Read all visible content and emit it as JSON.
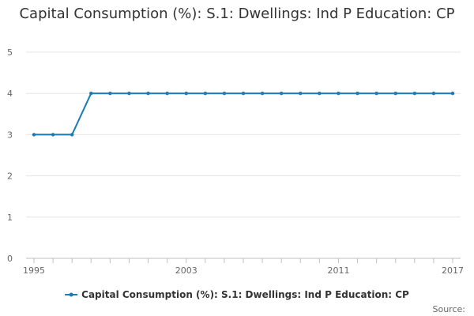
{
  "chart_data": {
    "type": "line",
    "title": "Capital Consumption (%): S.1: Dwellings: Ind P Education: CP",
    "xlabel": "",
    "ylabel": "",
    "x": [
      1995,
      1996,
      1997,
      1998,
      1999,
      2000,
      2001,
      2002,
      2003,
      2004,
      2005,
      2006,
      2007,
      2008,
      2009,
      2010,
      2011,
      2012,
      2013,
      2014,
      2015,
      2016,
      2017
    ],
    "series": [
      {
        "name": "Capital Consumption (%): S.1: Dwellings: Ind P Education: CP",
        "values": [
          3,
          3,
          3,
          4,
          4,
          4,
          4,
          4,
          4,
          4,
          4,
          4,
          4,
          4,
          4,
          4,
          4,
          4,
          4,
          4,
          4,
          4,
          4
        ],
        "color": "#1a7ab5"
      }
    ],
    "xlim": [
      1995,
      2017
    ],
    "ylim": [
      0,
      5
    ],
    "y_ticks": [
      "0",
      "1",
      "2",
      "3",
      "4",
      "5"
    ],
    "x_tick_labels": [
      "1995",
      "2003",
      "2011",
      "2017"
    ],
    "grid": true,
    "legend_position": "bottom"
  },
  "footer": {
    "source_label": "Source:"
  }
}
